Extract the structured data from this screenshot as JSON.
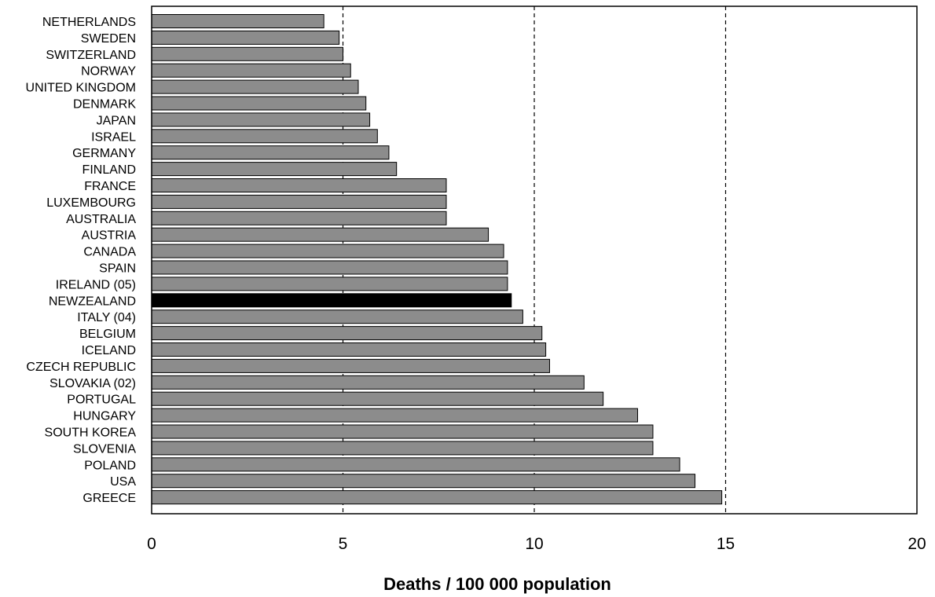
{
  "chart_data": {
    "type": "bar",
    "orientation": "horizontal",
    "xlabel": "Deaths / 100 000 population",
    "xlim": [
      0,
      20
    ],
    "xticks": [
      0,
      5,
      10,
      15,
      20
    ],
    "grid": "vertical dashed at 5, 10, 15",
    "categories": [
      "NETHERLANDS",
      "SWEDEN",
      "SWITZERLAND",
      "NORWAY",
      "UNITED KINGDOM",
      "DENMARK",
      "JAPAN",
      "ISRAEL",
      "GERMANY",
      "FINLAND",
      "FRANCE",
      "LUXEMBOURG",
      "AUSTRALIA",
      "AUSTRIA",
      "CANADA",
      "SPAIN",
      "IRELAND (05)",
      "NEWZEALAND",
      "ITALY (04)",
      "BELGIUM",
      "ICELAND",
      "CZECH REPUBLIC",
      "SLOVAKIA (02)",
      "PORTUGAL",
      "HUNGARY",
      "SOUTH KOREA",
      "SLOVENIA",
      "POLAND",
      "USA",
      "GREECE"
    ],
    "values": [
      4.5,
      4.9,
      5.0,
      5.2,
      5.4,
      5.6,
      5.7,
      5.9,
      6.2,
      6.4,
      7.7,
      7.7,
      7.7,
      8.8,
      9.2,
      9.3,
      9.3,
      9.4,
      9.7,
      10.2,
      10.3,
      10.4,
      11.3,
      11.8,
      12.7,
      13.1,
      13.1,
      13.8,
      14.2,
      14.9
    ],
    "highlight": "NEWZEALAND",
    "colors": {
      "bar": "#8c8c8c",
      "highlight": "#000000",
      "border": "#000000"
    }
  }
}
